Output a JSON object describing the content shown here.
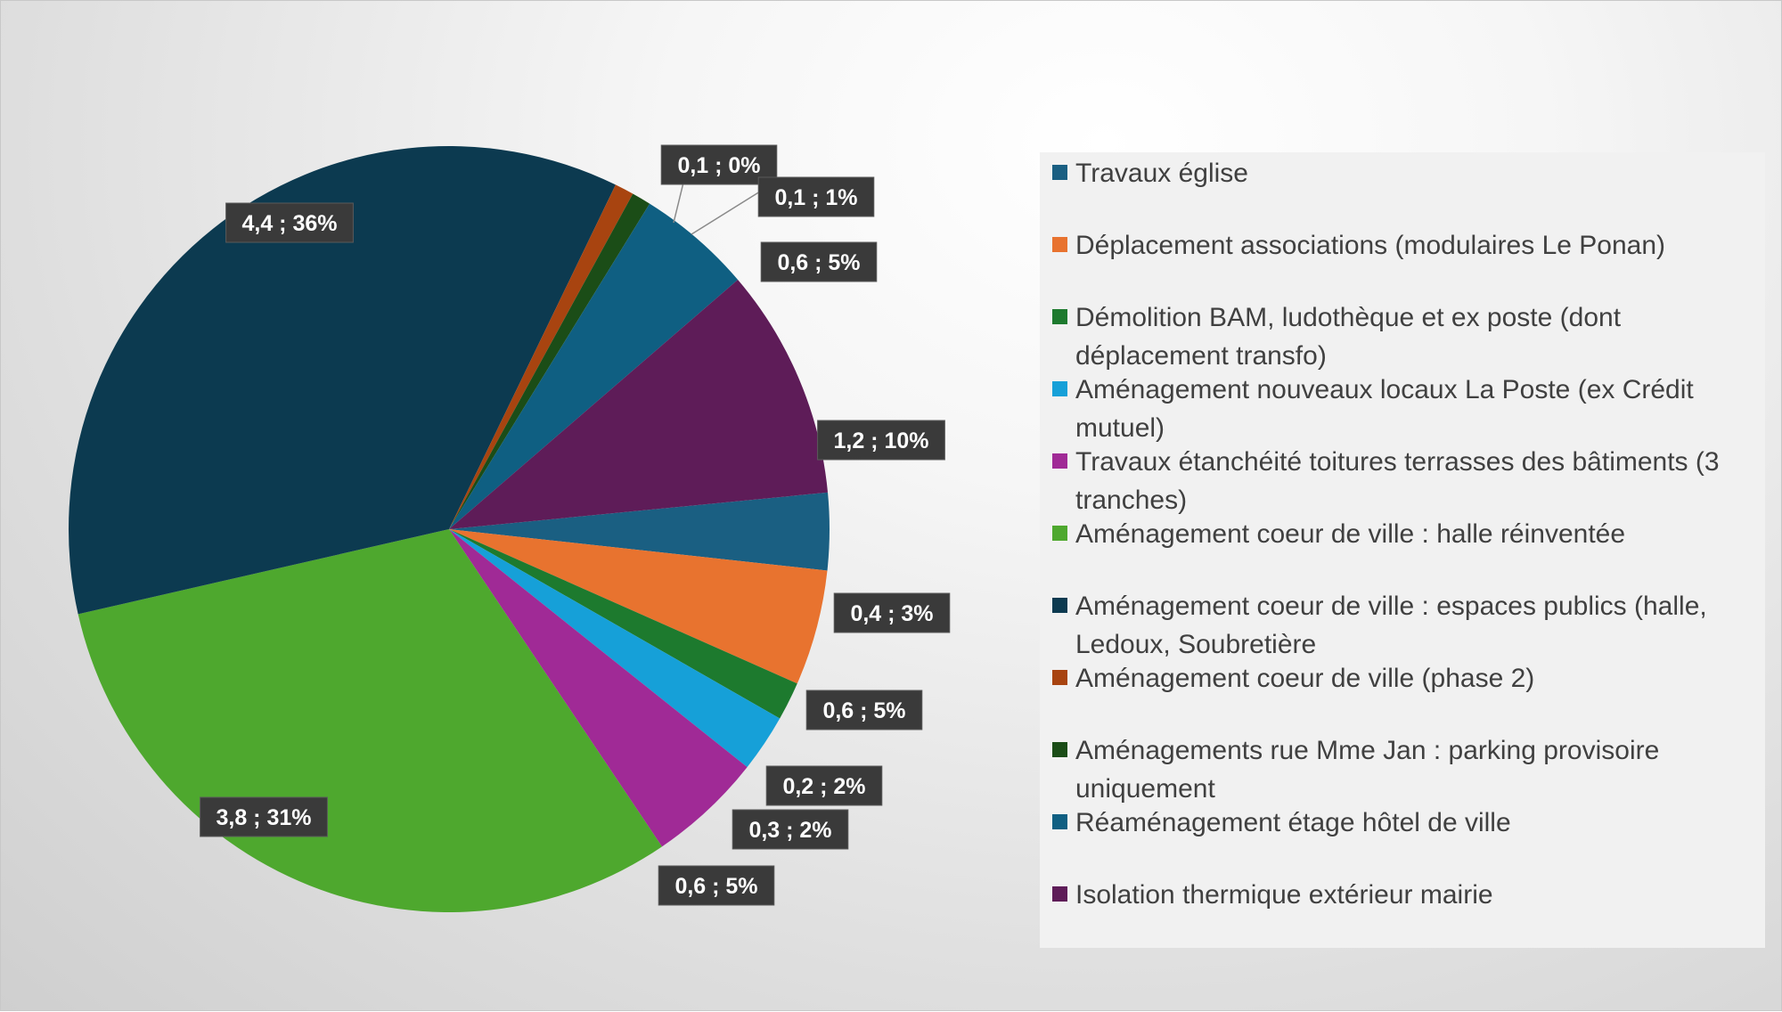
{
  "chart_data": {
    "type": "pie",
    "title": "",
    "colors": [
      "#1a5f82",
      "#e8732f",
      "#1d7a2e",
      "#16a0d8",
      "#a02a96",
      "#4ea82e",
      "#0c3a50",
      "#a84410",
      "#1b4d17",
      "#0f5f82",
      "#5e1c58"
    ],
    "slices": [
      {
        "name": "Travaux église",
        "value": 0.4,
        "percent": "3%",
        "label": "0,4 ; 3%"
      },
      {
        "name": "Déplacement associations (modulaires Le Ponan)",
        "value": 0.6,
        "percent": "5%",
        "label": "0,6 ; 5%"
      },
      {
        "name": "Démolition BAM, ludothèque et ex poste (dont déplacement transfo)",
        "value": 0.2,
        "percent": "2%",
        "label": "0,2 ; 2%"
      },
      {
        "name": "Aménagement nouveaux locaux La Poste (ex Crédit mutuel)",
        "value": 0.3,
        "percent": "2%",
        "label": "0,3 ; 2%"
      },
      {
        "name": "Travaux étanchéité toitures terrasses des bâtiments (3 tranches)",
        "value": 0.6,
        "percent": "5%",
        "label": "0,6 ; 5%"
      },
      {
        "name": "Aménagement coeur de ville : halle réinventée",
        "value": 3.8,
        "percent": "31%",
        "label": "3,8 ; 31%"
      },
      {
        "name": "Aménagement coeur de ville : espaces publics (halle, Ledoux, Soubretière",
        "value": 4.4,
        "percent": "36%",
        "label": "4,4 ; 36%"
      },
      {
        "name": "Aménagement coeur de ville (phase 2)",
        "value": 0.1,
        "percent": "0%",
        "label": "0,1 ; 0%"
      },
      {
        "name": "Aménagements rue Mme Jan : parking provisoire uniquement",
        "value": 0.1,
        "percent": "1%",
        "label": "0,1 ; 1%"
      },
      {
        "name": "Réaménagement étage hôtel de ville",
        "value": 0.6,
        "percent": "5%",
        "label": "0,6 ; 5%"
      },
      {
        "name": "Isolation thermique extérieur mairie",
        "value": 1.2,
        "percent": "10%",
        "label": "1,2 ; 10%"
      }
    ],
    "data_label_format": "value ; percent",
    "legend_position": "right"
  }
}
